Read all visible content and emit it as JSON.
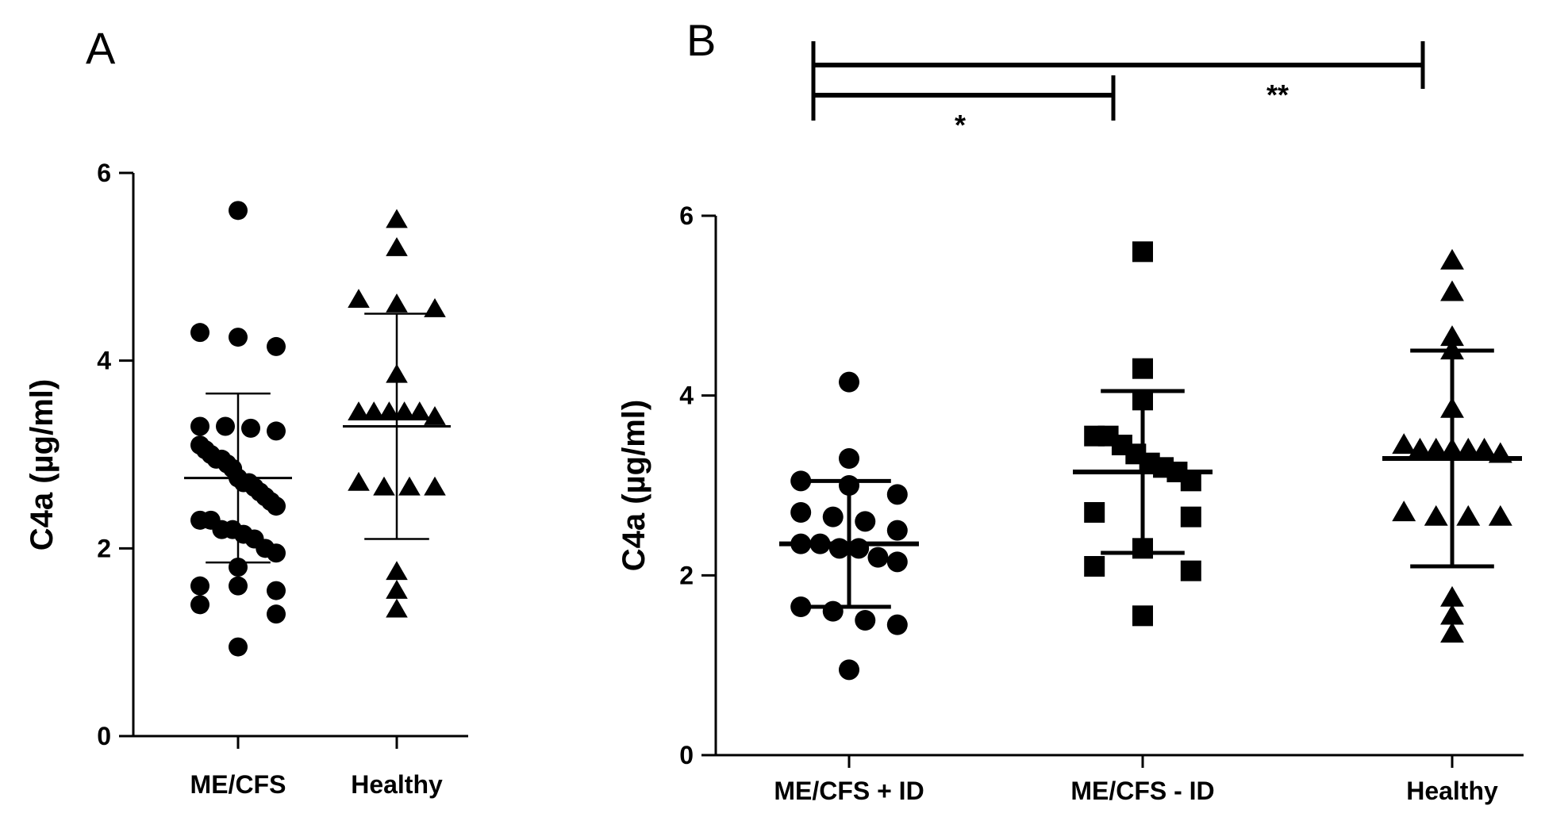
{
  "figure": {
    "panels": [
      "A",
      "B"
    ]
  },
  "chart_data": [
    {
      "panel": "A",
      "type": "scatter",
      "ylabel": "C4a (µg/ml)",
      "ylim": [
        0,
        6
      ],
      "yticks": [
        0,
        2,
        4,
        6
      ],
      "categories": [
        "ME/CFS",
        "Healthy"
      ],
      "series": [
        {
          "name": "ME/CFS",
          "marker": "circle",
          "values": [
            5.6,
            4.3,
            4.25,
            4.15,
            3.3,
            3.3,
            3.28,
            3.25,
            3.1,
            3.05,
            3.0,
            2.95,
            2.95,
            2.9,
            2.85,
            2.75,
            2.7,
            2.7,
            2.65,
            2.6,
            2.55,
            2.5,
            2.45,
            2.3,
            2.3,
            2.2,
            2.2,
            2.15,
            2.1,
            2.0,
            1.95,
            1.8,
            1.6,
            1.6,
            1.55,
            1.4,
            1.3,
            0.95
          ],
          "mean": 2.75,
          "sd_low": 1.85,
          "sd_high": 3.65
        },
        {
          "name": "Healthy",
          "marker": "triangle",
          "values": [
            5.5,
            5.2,
            4.65,
            4.6,
            4.55,
            3.85,
            3.45,
            3.45,
            3.45,
            3.45,
            3.45,
            3.4,
            2.7,
            2.65,
            2.65,
            2.65,
            1.75,
            1.55,
            1.35
          ],
          "mean": 3.3,
          "sd_low": 2.1,
          "sd_high": 4.5
        }
      ]
    },
    {
      "panel": "B",
      "type": "scatter",
      "ylabel": "C4a (µg/ml)",
      "ylim": [
        0,
        6
      ],
      "yticks": [
        0,
        2,
        4,
        6
      ],
      "categories": [
        "ME/CFS + ID",
        "ME/CFS - ID",
        "Healthy"
      ],
      "series": [
        {
          "name": "ME/CFS + ID",
          "marker": "circle",
          "values": [
            4.15,
            3.3,
            3.05,
            3.0,
            2.9,
            2.7,
            2.65,
            2.6,
            2.5,
            2.35,
            2.35,
            2.3,
            2.3,
            2.2,
            2.15,
            1.65,
            1.6,
            1.5,
            1.45,
            0.95
          ],
          "mean": 2.35,
          "sd_low": 1.65,
          "sd_high": 3.05
        },
        {
          "name": "ME/CFS - ID",
          "marker": "square",
          "values": [
            5.6,
            4.3,
            3.95,
            3.55,
            3.55,
            3.45,
            3.35,
            3.25,
            3.2,
            3.15,
            3.05,
            2.7,
            2.65,
            2.3,
            2.1,
            2.05,
            1.55
          ],
          "mean": 3.15,
          "sd_low": 2.25,
          "sd_high": 4.05
        },
        {
          "name": "Healthy",
          "marker": "triangle",
          "values": [
            5.5,
            5.15,
            4.65,
            4.5,
            3.85,
            3.45,
            3.4,
            3.4,
            3.4,
            3.4,
            3.4,
            3.35,
            2.7,
            2.65,
            2.65,
            2.65,
            1.75,
            1.55,
            1.35
          ],
          "mean": 3.3,
          "sd_low": 2.1,
          "sd_high": 4.5
        }
      ],
      "significance": [
        {
          "from": "ME/CFS + ID",
          "to": "ME/CFS - ID",
          "label": "*"
        },
        {
          "from": "ME/CFS + ID",
          "to": "Healthy",
          "label": "**"
        }
      ]
    }
  ]
}
